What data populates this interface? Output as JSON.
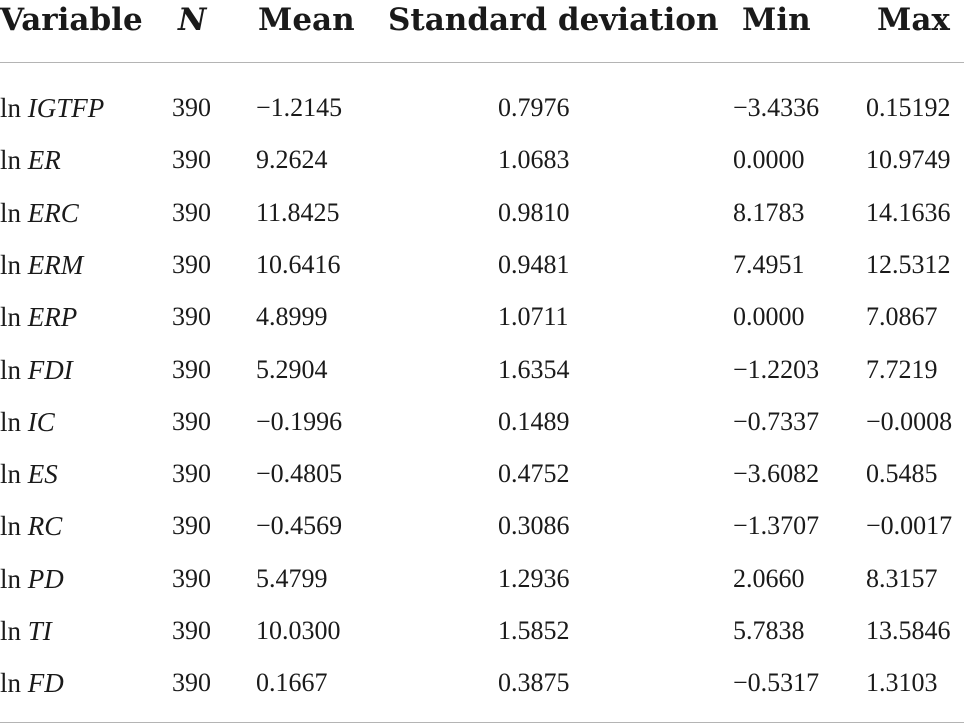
{
  "table": {
    "headers": {
      "variable": "Variable",
      "n": "N",
      "mean": "Mean",
      "sd": "Standard deviation",
      "min": "Min",
      "max": "Max"
    },
    "rows": [
      {
        "prefix": "ln",
        "name": "IGTFP",
        "n": "390",
        "mean": "−1.2145",
        "sd": "0.7976",
        "min": "−3.4336",
        "max": "0.15192"
      },
      {
        "prefix": "ln",
        "name": "ER",
        "n": "390",
        "mean": "9.2624",
        "sd": "1.0683",
        "min": "0.0000",
        "max": "10.9749"
      },
      {
        "prefix": "ln",
        "name": "ERC",
        "n": "390",
        "mean": "11.8425",
        "sd": "0.9810",
        "min": "8.1783",
        "max": "14.1636"
      },
      {
        "prefix": "ln",
        "name": "ERM",
        "n": "390",
        "mean": "10.6416",
        "sd": "0.9481",
        "min": "7.4951",
        "max": "12.5312"
      },
      {
        "prefix": "ln",
        "name": "ERP",
        "n": "390",
        "mean": "4.8999",
        "sd": "1.0711",
        "min": "0.0000",
        "max": "7.0867"
      },
      {
        "prefix": "ln",
        "name": "FDI",
        "n": "390",
        "mean": "5.2904",
        "sd": "1.6354",
        "min": "−1.2203",
        "max": "7.7219"
      },
      {
        "prefix": "ln",
        "name": "IC",
        "n": "390",
        "mean": "−0.1996",
        "sd": "0.1489",
        "min": "−0.7337",
        "max": "−0.0008"
      },
      {
        "prefix": "ln",
        "name": "ES",
        "n": "390",
        "mean": "−0.4805",
        "sd": "0.4752",
        "min": "−3.6082",
        "max": "0.5485"
      },
      {
        "prefix": "ln",
        "name": "RC",
        "n": "390",
        "mean": "−0.4569",
        "sd": "0.3086",
        "min": "−1.3707",
        "max": "−0.0017"
      },
      {
        "prefix": "ln",
        "name": "PD",
        "n": "390",
        "mean": "5.4799",
        "sd": "1.2936",
        "min": "2.0660",
        "max": "8.3157"
      },
      {
        "prefix": "ln",
        "name": "TI",
        "n": "390",
        "mean": "10.0300",
        "sd": "1.5852",
        "min": "5.7838",
        "max": "13.5846"
      },
      {
        "prefix": "ln",
        "name": "FD",
        "n": "390",
        "mean": "0.1667",
        "sd": "0.3875",
        "min": "−0.5317",
        "max": "1.3103"
      }
    ]
  }
}
